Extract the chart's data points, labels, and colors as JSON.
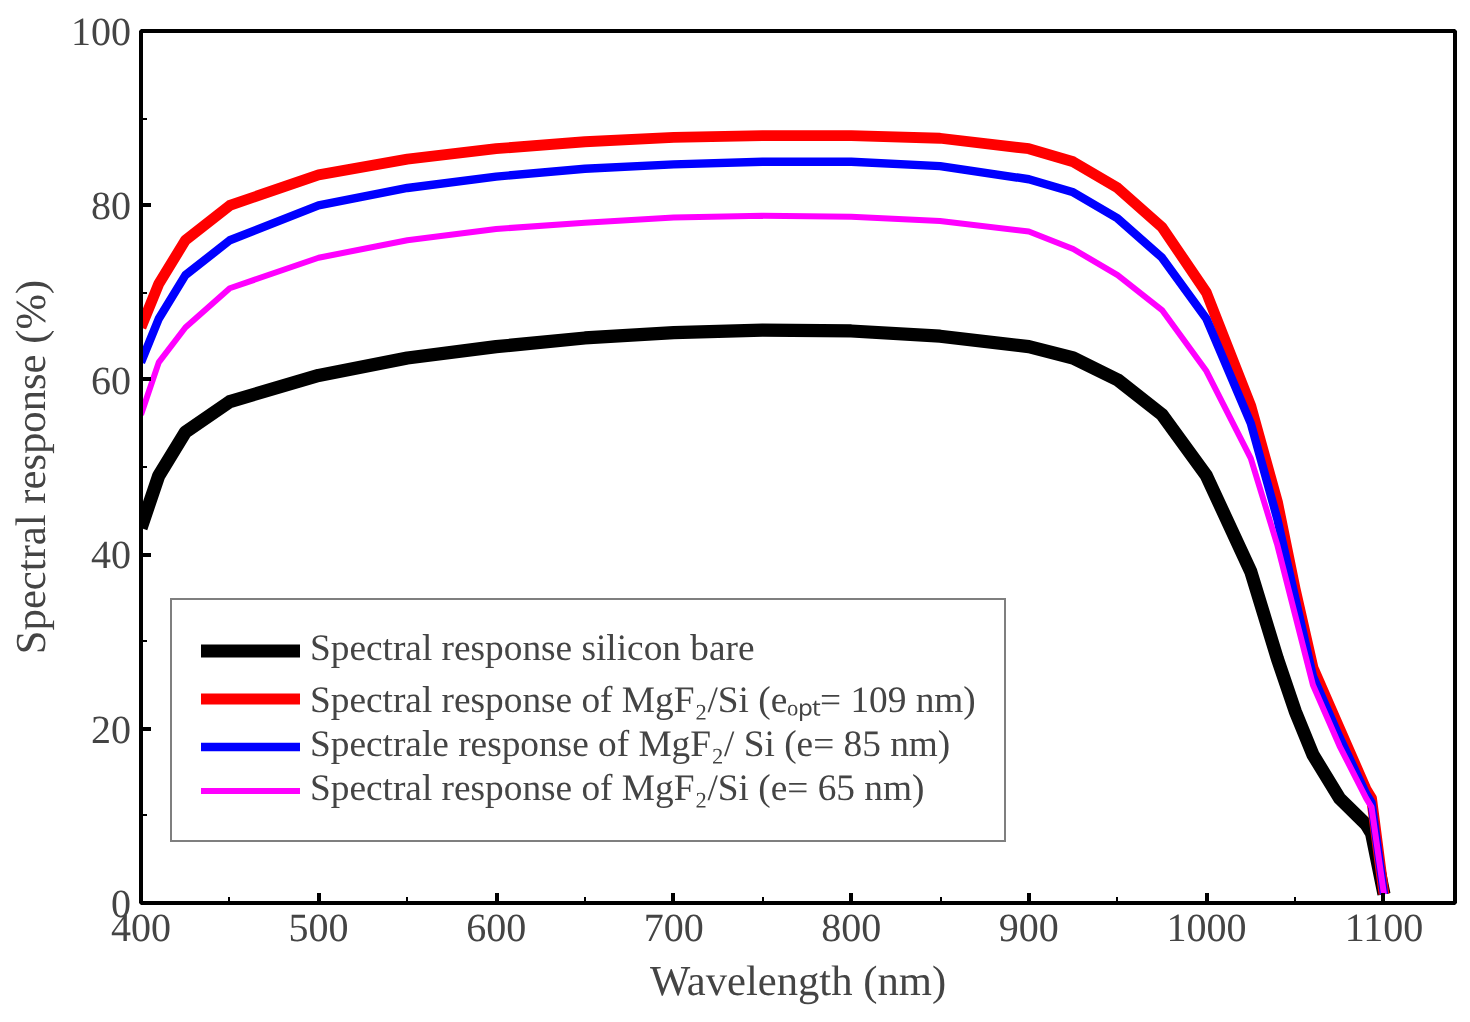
{
  "chart_data": {
    "type": "line",
    "xlabel": "Wavelength (nm)",
    "ylabel": "Spectral response (%)",
    "x": [
      400,
      410,
      425,
      450,
      500,
      550,
      600,
      650,
      700,
      750,
      800,
      850,
      900,
      925,
      950,
      975,
      1000,
      1025,
      1040,
      1050,
      1060,
      1075,
      1090,
      1093,
      1100
    ],
    "series": [
      {
        "name": "Spectral response silicon bare",
        "color": "#000000",
        "values": [
          43,
          49,
          54,
          57.5,
          60.5,
          62.5,
          63.8,
          64.8,
          65.4,
          65.7,
          65.6,
          65,
          63.8,
          62.5,
          60,
          56,
          49,
          38,
          28,
          22,
          17,
          12,
          9,
          8,
          1
        ]
      },
      {
        "name": "Spectral response of MgF₂/Si (eₒₚₜ= 109 nm)",
        "color": "#ff0000",
        "values": [
          66,
          71,
          76,
          80,
          83.5,
          85.3,
          86.5,
          87.3,
          87.8,
          88,
          88,
          87.7,
          86.5,
          85,
          82,
          77.5,
          70,
          57,
          46,
          36,
          27,
          20,
          13,
          12,
          1
        ]
      },
      {
        "name": "Spectrale response of MgF₂/ Si (e= 85 nm)",
        "color": "#0000ff",
        "values": [
          62,
          67,
          72,
          76,
          80,
          82,
          83.3,
          84.2,
          84.7,
          85,
          85,
          84.5,
          83,
          81.5,
          78.5,
          74,
          67,
          55,
          44,
          35,
          26,
          19,
          12.5,
          11.5,
          1
        ]
      },
      {
        "name": "Spectral response of MgF₂/Si (e= 65 nm)",
        "color": "#ff00ff",
        "values": [
          56,
          62,
          66,
          70.5,
          74,
          76,
          77.3,
          78,
          78.6,
          78.8,
          78.7,
          78.2,
          77,
          75,
          72,
          68,
          61,
          51,
          41,
          33,
          25,
          18,
          12,
          11,
          1
        ]
      }
    ],
    "xlim": [
      400,
      1140
    ],
    "ylim": [
      0,
      100
    ],
    "xticks": [
      400,
      500,
      600,
      700,
      800,
      900,
      1000,
      1100
    ],
    "yticks": [
      0,
      20,
      40,
      60,
      80,
      100
    ],
    "grid": false,
    "legend": "bottom left",
    "line_style": "solid",
    "marker": "none"
  }
}
